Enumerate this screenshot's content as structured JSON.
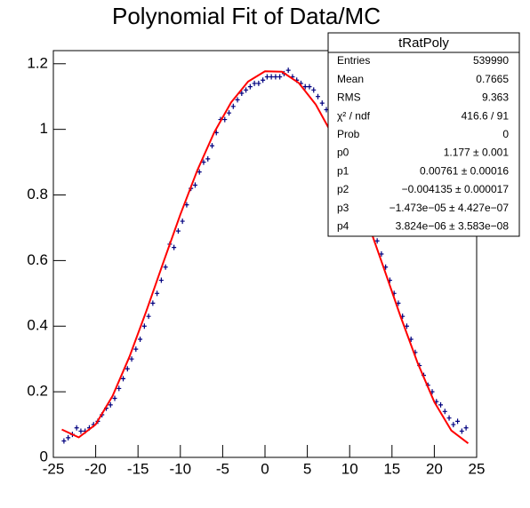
{
  "chart_data": {
    "type": "scatter",
    "title": "Polynomial Fit of Data/MC",
    "xlim": [
      -25,
      25
    ],
    "ylim": [
      0,
      1.24
    ],
    "xticks": [
      -25,
      -20,
      -15,
      -10,
      -5,
      0,
      5,
      10,
      15,
      20,
      25
    ],
    "yticks": [
      0,
      0.2,
      0.4,
      0.6,
      0.8,
      1,
      1.2
    ],
    "color": "#00007f",
    "x": [
      -23.75,
      -23.25,
      -22.75,
      -22.25,
      -21.75,
      -21.25,
      -20.75,
      -20.25,
      -19.75,
      -19.25,
      -18.75,
      -18.25,
      -17.75,
      -17.25,
      -16.75,
      -16.25,
      -15.75,
      -15.25,
      -14.75,
      -14.25,
      -13.75,
      -13.25,
      -12.75,
      -12.25,
      -11.75,
      -11.25,
      -10.75,
      -10.25,
      -9.75,
      -9.25,
      -8.75,
      -8.25,
      -7.75,
      -7.25,
      -6.75,
      -6.25,
      -5.75,
      -5.25,
      -4.75,
      -4.25,
      -3.75,
      -3.25,
      -2.75,
      -2.25,
      -1.75,
      -1.25,
      -0.75,
      -0.25,
      0.25,
      0.75,
      1.25,
      1.75,
      2.25,
      2.75,
      3.25,
      3.75,
      4.25,
      4.75,
      5.25,
      5.75,
      6.25,
      6.75,
      7.25,
      7.75,
      8.25,
      8.75,
      9.25,
      9.75,
      10.25,
      10.75,
      11.25,
      11.75,
      12.25,
      12.75,
      13.25,
      13.75,
      14.25,
      14.75,
      15.25,
      15.75,
      16.25,
      16.75,
      17.25,
      17.75,
      18.25,
      18.75,
      19.25,
      19.75,
      20.25,
      20.75,
      21.25,
      21.75,
      22.25,
      22.75,
      23.25,
      23.75
    ],
    "values": [
      0.05,
      0.06,
      0.07,
      0.09,
      0.08,
      0.08,
      0.09,
      0.1,
      0.11,
      0.13,
      0.15,
      0.16,
      0.18,
      0.21,
      0.24,
      0.27,
      0.3,
      0.33,
      0.36,
      0.4,
      0.43,
      0.47,
      0.5,
      0.54,
      0.58,
      0.65,
      0.64,
      0.69,
      0.72,
      0.77,
      0.82,
      0.83,
      0.87,
      0.9,
      0.91,
      0.95,
      0.99,
      1.03,
      1.03,
      1.05,
      1.07,
      1.09,
      1.11,
      1.12,
      1.13,
      1.14,
      1.14,
      1.15,
      1.16,
      1.16,
      1.16,
      1.16,
      1.17,
      1.18,
      1.16,
      1.15,
      1.14,
      1.13,
      1.13,
      1.12,
      1.1,
      1.08,
      1.06,
      1.05,
      1.03,
      0.99,
      0.97,
      0.93,
      0.89,
      0.86,
      0.82,
      0.79,
      0.74,
      0.7,
      0.66,
      0.62,
      0.58,
      0.54,
      0.5,
      0.47,
      0.43,
      0.4,
      0.36,
      0.32,
      0.28,
      0.25,
      0.22,
      0.2,
      0.17,
      0.16,
      0.14,
      0.12,
      0.1,
      0.11,
      0.08,
      0.09
    ],
    "fit": {
      "color": "#ff0000",
      "x": [
        -24,
        -22,
        -20,
        -18,
        -16,
        -14,
        -12,
        -10,
        -8,
        -6,
        -4,
        -2,
        0,
        2,
        4,
        6,
        8,
        10,
        12,
        14,
        16,
        18,
        20,
        22,
        24
      ],
      "values": [
        0.0849,
        0.0609,
        0.1004,
        0.1876,
        0.3075,
        0.4473,
        0.5951,
        0.7403,
        0.8747,
        0.9906,
        1.0823,
        1.1455,
        1.177,
        1.1757,
        1.1413,
        1.0756,
        0.9815,
        0.8631,
        0.7267,
        0.5795,
        0.4305,
        0.2898,
        0.169,
        0.0821,
        0.0429
      ]
    },
    "stats": {
      "title": "tRatPoly",
      "rows": [
        {
          "label": "Entries",
          "value": "539990"
        },
        {
          "label": "Mean",
          "value": "0.7665"
        },
        {
          "label": "RMS",
          "value": "9.363"
        },
        {
          "label": "χ² / ndf",
          "value": "416.6 / 91"
        },
        {
          "label": "Prob",
          "value": "0"
        },
        {
          "label": "p0",
          "value": "1.177 ± 0.001"
        },
        {
          "label": "p1",
          "value": "0.00761 ± 0.00016"
        },
        {
          "label": "p2",
          "value": "−0.004135 ± 0.000017"
        },
        {
          "label": "p3",
          "value": "−1.473e−05 ± 4.427e−07"
        },
        {
          "label": "p4",
          "value": "3.824e−06 ± 3.583e−08"
        }
      ]
    }
  }
}
